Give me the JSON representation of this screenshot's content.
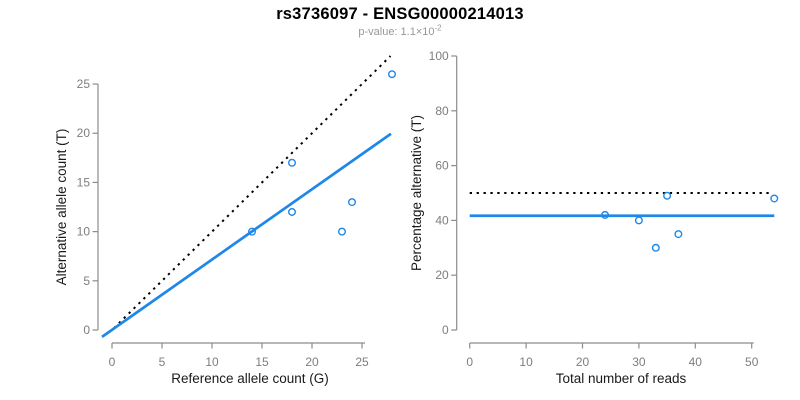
{
  "header": {
    "title": "rs3736097 - ENSG00000214013",
    "subtitle_prefix": "p-value: 1.1×10",
    "subtitle_exponent": "-2"
  },
  "colors": {
    "accent_blue": "#1e87e8",
    "dotted_black": "#000000",
    "axis_gray": "#8c8c8c",
    "tick_label_gray": "#7d7d7d",
    "subtitle_gray": "#979797",
    "axis_title_black": "#1a1a1a"
  },
  "chart_data": [
    {
      "id": "allele-count-scatter",
      "type": "scatter",
      "xlabel": "Reference allele count (G)",
      "ylabel": "Alternative allele count (T)",
      "xlim": [
        0,
        28
      ],
      "ylim": [
        0,
        26
      ],
      "x_ticks": [
        0,
        5,
        10,
        15,
        20,
        25
      ],
      "y_ticks": [
        0,
        5,
        10,
        15,
        20,
        25
      ],
      "grid": false,
      "legend": null,
      "points": [
        [
          14,
          10
        ],
        [
          18,
          12
        ],
        [
          18,
          17
        ],
        [
          23,
          10
        ],
        [
          24,
          13
        ],
        [
          28,
          26
        ]
      ],
      "lines": [
        {
          "name": "identity-line",
          "style": "dotted",
          "color": "#000000",
          "slope": 1,
          "intercept": 0,
          "x1": 0.2,
          "y1": 0.2,
          "x2": 27.85,
          "y2": 27.85
        },
        {
          "name": "fit-line",
          "style": "solid",
          "color": "#1e87e8",
          "slope": 0.715,
          "intercept": 0,
          "x1": -1,
          "y1": -0.7,
          "x2": 27.9,
          "y2": 19.95
        }
      ]
    },
    {
      "id": "percentage-scatter",
      "type": "scatter",
      "xlabel": "Total number of reads",
      "ylabel": "Percentage alternative (T)",
      "xlim": [
        0,
        54
      ],
      "ylim": [
        0,
        100
      ],
      "x_ticks": [
        0,
        10,
        20,
        30,
        40,
        50
      ],
      "y_ticks": [
        0,
        20,
        40,
        60,
        80,
        100
      ],
      "grid": false,
      "legend": null,
      "points": [
        [
          24,
          42
        ],
        [
          30,
          40
        ],
        [
          33,
          30
        ],
        [
          35,
          49
        ],
        [
          37,
          35
        ],
        [
          54,
          48
        ]
      ],
      "lines": [
        {
          "name": "expected-50pct-line",
          "style": "dotted",
          "color": "#000000",
          "y_const": 50,
          "x1": 0,
          "y1": 50,
          "x2": 53.2,
          "y2": 50
        },
        {
          "name": "mean-percentage-line",
          "style": "solid",
          "color": "#1e87e8",
          "y_const": 41.7,
          "x1": 0,
          "y1": 41.7,
          "x2": 54,
          "y2": 41.7
        }
      ]
    }
  ]
}
